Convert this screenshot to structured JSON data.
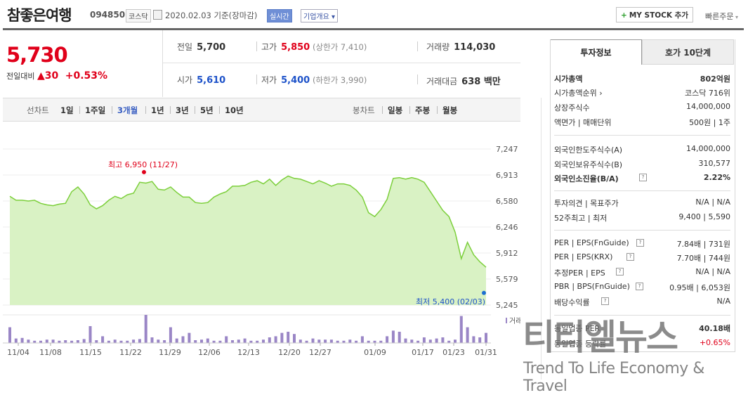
{
  "header": {
    "stock_name": "참좋은여행",
    "stock_code": "094850",
    "market": "코스닥",
    "date": "2020.02.03",
    "date_suffix": "기준(장마감)",
    "live_label": "실시간",
    "company_overview": "기업개요 ▾",
    "my_stock_label": "MY STOCK 추가",
    "quick_order": "빠른주문"
  },
  "price": {
    "current": "5,730",
    "change_label": "전일대비",
    "change_arrow": "▲",
    "change_amount": "30",
    "change_percent": "+0.53%"
  },
  "summary": {
    "prev_close_label": "전일",
    "prev_close": "5,700",
    "high_label": "고가",
    "high": "5,850",
    "upper_limit": "(상한가 7,410)",
    "volume_label": "거래량",
    "volume": "114,030",
    "open_label": "시가",
    "open": "5,610",
    "low_label": "저가",
    "low": "5,400",
    "lower_limit": "(하한가 3,990)",
    "trade_value_label": "거래대금",
    "trade_value": "638 백만"
  },
  "chart_tabs": {
    "line_label": "선차트",
    "periods": [
      "1일",
      "1주일",
      "3개월",
      "1년",
      "3년",
      "5년",
      "10년"
    ],
    "active_period": "3개월",
    "candle_label": "봉차트",
    "candles": [
      "일봉",
      "주봉",
      "월봉"
    ]
  },
  "chart_data": {
    "type": "area",
    "title": "",
    "y_ticks": [
      "7,247",
      "6,913",
      "6,580",
      "6,246",
      "5,912",
      "5,579",
      "5,245"
    ],
    "ylim": [
      5245,
      7247
    ],
    "x_ticks": [
      "11/04",
      "11/08",
      "11/15",
      "11/22",
      "11/29",
      "12/06",
      "12/13",
      "12/20",
      "12/27",
      "01/09",
      "01/17",
      "01/23",
      "01/31"
    ],
    "max_annotation": "최고 6,950 (11/27)",
    "min_annotation": "최저 5,400 (02/03)",
    "volume_label": "거래량",
    "series": [
      {
        "values": [
          6640,
          6590,
          6590,
          6580,
          6590,
          6550,
          6530,
          6520,
          6540,
          6550,
          6700,
          6760,
          6670,
          6530,
          6480,
          6520,
          6590,
          6640,
          6610,
          6660,
          6680,
          6820,
          6810,
          6830,
          6730,
          6720,
          6760,
          6690,
          6630,
          6630,
          6560,
          6550,
          6560,
          6630,
          6670,
          6700,
          6770,
          6770,
          6780,
          6820,
          6840,
          6800,
          6860,
          6780,
          6850,
          6900,
          6870,
          6860,
          6830,
          6800,
          6840,
          6810,
          6770,
          6800,
          6800,
          6780,
          6720,
          6630,
          6430,
          6380,
          6470,
          6600,
          6870,
          6880,
          6860,
          6880,
          6860,
          6820,
          6700,
          6580,
          6460,
          6380,
          6180,
          5840,
          6050,
          5890,
          5800,
          5730
        ]
      }
    ],
    "volume": [
      28,
      8,
      9,
      6,
      4,
      4,
      6,
      6,
      4,
      5,
      4,
      5,
      7,
      30,
      5,
      12,
      4,
      6,
      4,
      4,
      6,
      7,
      50,
      10,
      6,
      5,
      28,
      8,
      12,
      18,
      5,
      6,
      8,
      4,
      4,
      12,
      5,
      6,
      8,
      4,
      4,
      6,
      10,
      12,
      18,
      20,
      16,
      6,
      4,
      8,
      6,
      6,
      6,
      4,
      4,
      6,
      4,
      12,
      4,
      4,
      4,
      12,
      22,
      20,
      8,
      6,
      4,
      10,
      6,
      8,
      10,
      4,
      6,
      48,
      28,
      12,
      10,
      18
    ]
  },
  "panel": {
    "tab_invest": "투자정보",
    "tab_orderbook": "호가 10단계",
    "rows1": [
      {
        "k": "시가총액",
        "v": "802억원"
      },
      {
        "k": "시가총액순위 ›",
        "v": "코스닥 716위"
      },
      {
        "k": "상장주식수",
        "v": "14,000,000"
      },
      {
        "k": "액면가 | 매매단위",
        "v": "500원 | 1주"
      }
    ],
    "rows2": [
      {
        "k": "외국인한도주식수(A)",
        "v": "14,000,000"
      },
      {
        "k": "외국인보유주식수(B)",
        "v": "310,577"
      },
      {
        "k": "외국인소진율(B/A)",
        "v": "2.22%"
      }
    ],
    "rows3": [
      {
        "k": "투자의견 | 목표주가",
        "v": "N/A | N/A"
      },
      {
        "k": "52주최고 | 최저",
        "v": "9,400 | 5,590"
      }
    ],
    "rows4": [
      {
        "k": "PER | EPS(FnGuide)",
        "v": "7.84배 | 731원"
      },
      {
        "k": "PER | EPS(KRX)",
        "v": "7.70배 | 744원"
      },
      {
        "k": "추정PER | EPS",
        "v": "N/A | N/A"
      },
      {
        "k": "PBR | BPS(FnGuide)",
        "v": "0.95배 | 6,053원"
      },
      {
        "k": "배당수익률",
        "v": "N/A"
      }
    ],
    "rows5": [
      {
        "k": "동일업종 PER",
        "v": "40.18배"
      },
      {
        "k": "동일업종 등락률",
        "v": "+0.65%"
      }
    ]
  },
  "watermark": {
    "korean": "티티엘뉴스",
    "english": "Trend To Life Economy & Travel"
  },
  "colors": {
    "up": "#e0001a",
    "down": "#1d52c9",
    "area_fill": "#d9f2c4",
    "area_line": "#7ccf3b",
    "volume_bar": "#9a86c6"
  }
}
